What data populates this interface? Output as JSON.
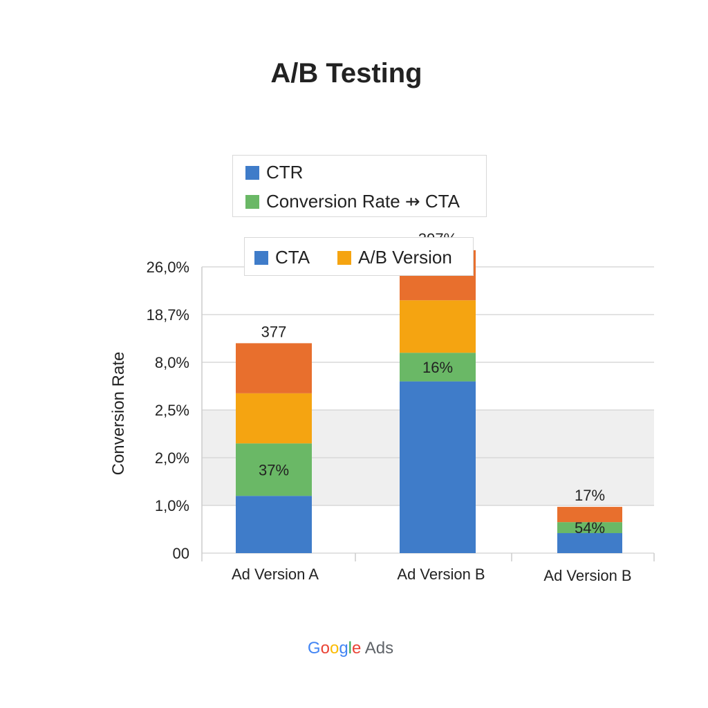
{
  "chart_data": {
    "type": "bar",
    "stacked": true,
    "title": "A/B Testing",
    "ylabel": "Conversion Rate",
    "xlabel": "",
    "y_tick_labels": [
      "00",
      "1,0%",
      "2,0%",
      "2,5%",
      "8,0%",
      "18,7%",
      "26,0%"
    ],
    "categories": [
      "Ad Version A",
      "Ad Version B",
      "Ad Version B"
    ],
    "series": [
      {
        "values": [
          1.2,
          3.6,
          0.42
        ],
        "color": "#3f7cc9"
      },
      {
        "values": [
          1.1,
          0.6,
          0.23
        ],
        "color": "#6ab866"
      },
      {
        "values": [
          1.05,
          1.1,
          0
        ],
        "color": "#f5a411"
      },
      {
        "values": [
          1.05,
          1.05,
          0.32
        ],
        "color": "#e86f2d"
      }
    ],
    "segment_labels": [
      {
        "bar": 0,
        "segment": 1,
        "text": "37%"
      },
      {
        "bar": 1,
        "segment": 1,
        "text": "16%"
      },
      {
        "bar": 2,
        "segment": 1,
        "text": "54%"
      }
    ],
    "top_labels": [
      "377",
      "397%",
      "17%"
    ],
    "grid": true,
    "legend_placement": "top-center"
  },
  "legends": [
    {
      "items": [
        {
          "label": "CTR",
          "color": "#3f7cc9"
        },
        {
          "label": "Conversion Rate ⇸ CTA",
          "color": "#6ab866"
        }
      ]
    },
    {
      "items": [
        {
          "label": "CTA",
          "color": "#3f7cc9"
        },
        {
          "label": "A/B Version",
          "color": "#f5a411"
        }
      ]
    }
  ],
  "footer": {
    "google": [
      "G",
      "o",
      "o",
      "g",
      "l",
      "e"
    ],
    "ads": "Ads"
  }
}
